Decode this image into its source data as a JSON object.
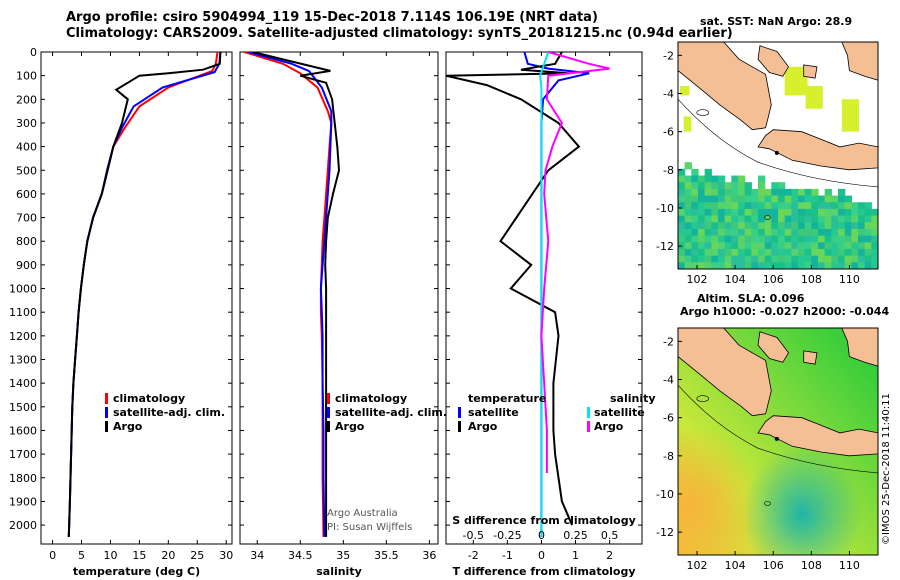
{
  "header": {
    "line1": "Argo profile: csiro 5904994_119 15-Dec-2018 7.114S 106.19E (NRT data)",
    "line2": "Climatology: CARS2009. Satellite-adjusted climatology: synTS_20181215.nc (0.94d earlier)"
  },
  "colors": {
    "climatology": "#ff0000",
    "satellite": "#0000ff",
    "argo": "#000000",
    "sal_satellite": "#00e5ee",
    "sal_argo": "#ff00ff",
    "land": "#f4bf95",
    "sea": "#ffffff"
  },
  "chart_data": [
    {
      "type": "line",
      "name": "temperature",
      "xlabel": "temperature (deg C)",
      "ylabel": "",
      "xlim": [
        -2,
        31
      ],
      "ylim": [
        2080,
        0
      ],
      "xticks": [
        0,
        5,
        10,
        15,
        20,
        25,
        30
      ],
      "yticks": [
        0,
        100,
        200,
        300,
        400,
        500,
        600,
        700,
        800,
        900,
        1000,
        1100,
        1200,
        1300,
        1400,
        1500,
        1600,
        1700,
        1800,
        1900,
        2000
      ],
      "legend": {
        "position": "bottom-center",
        "items": [
          "climatology",
          "satellite-adj. clim.",
          "Argo"
        ]
      },
      "series": [
        {
          "name": "climatology",
          "x": [
            28.5,
            28.2,
            27.6,
            20,
            15,
            12.5,
            10.5,
            9.5,
            8.5,
            7,
            6,
            5.4,
            4.9,
            4.5,
            4.2,
            3.9,
            3.6,
            3.4,
            3.2,
            3,
            2.8
          ],
          "y": [
            0,
            50,
            80,
            150,
            230,
            320,
            400,
            500,
            600,
            700,
            800,
            900,
            1000,
            1100,
            1200,
            1300,
            1400,
            1500,
            1700,
            1900,
            2050
          ]
        },
        {
          "name": "satellite-adj. clim.",
          "x": [
            29,
            28.8,
            28,
            19,
            14,
            12,
            10.5,
            9.4,
            8.5,
            7,
            6,
            5.4,
            4.9,
            4.5,
            4.2,
            3.9,
            3.6,
            3.4,
            3.2,
            3,
            2.8
          ],
          "y": [
            0,
            50,
            85,
            150,
            230,
            320,
            400,
            500,
            600,
            700,
            800,
            900,
            1000,
            1100,
            1200,
            1300,
            1400,
            1500,
            1700,
            1900,
            2050
          ]
        },
        {
          "name": "Argo",
          "x": [
            29,
            28.9,
            26,
            20,
            15,
            11,
            13,
            12,
            10.5,
            9.5,
            8.5,
            7,
            6,
            5.4,
            4.9,
            4.5,
            4.2,
            3.9,
            3.6,
            3.4,
            3.2,
            3,
            2.8
          ],
          "y": [
            0,
            50,
            75,
            90,
            100,
            160,
            200,
            300,
            400,
            500,
            600,
            700,
            800,
            900,
            1000,
            1100,
            1200,
            1300,
            1400,
            1500,
            1700,
            1900,
            2050
          ]
        }
      ]
    },
    {
      "type": "line",
      "name": "salinity",
      "xlabel": "salinity",
      "ylabel": "",
      "xlim": [
        33.8,
        36.1
      ],
      "ylim": [
        2080,
        0
      ],
      "xticks": [
        34,
        34.5,
        35,
        35.5,
        36
      ],
      "legend": {
        "position": "bottom-center",
        "items": [
          "climatology",
          "satellite-adj. clim.",
          "Argo"
        ]
      },
      "annotations": [
        "Argo Australia",
        "PI: Susan Wijffels"
      ],
      "series": [
        {
          "name": "climatology",
          "x": [
            33.85,
            34.3,
            34.5,
            34.7,
            34.82,
            34.86,
            34.84,
            34.82,
            34.8,
            34.78,
            34.76,
            34.75,
            34.74,
            34.74,
            34.75,
            34.76,
            34.76,
            34.76,
            34.77
          ],
          "y": [
            0,
            50,
            90,
            150,
            250,
            300,
            400,
            500,
            600,
            700,
            800,
            900,
            1000,
            1100,
            1200,
            1400,
            1600,
            1800,
            2050
          ]
        },
        {
          "name": "satellite-adj. clim.",
          "x": [
            33.9,
            34.4,
            34.6,
            34.75,
            34.86,
            34.86,
            34.85,
            34.84,
            34.82,
            34.8,
            34.78,
            34.76,
            34.74,
            34.75,
            34.76,
            34.76,
            34.77,
            34.77,
            34.78
          ],
          "y": [
            0,
            50,
            80,
            150,
            250,
            300,
            400,
            500,
            600,
            700,
            800,
            900,
            1000,
            1100,
            1200,
            1400,
            1600,
            1800,
            2050
          ]
        },
        {
          "name": "Argo",
          "x": [
            33.95,
            34.4,
            34.85,
            34.5,
            34.8,
            34.87,
            34.9,
            34.93,
            34.95,
            34.88,
            34.82,
            34.8,
            34.79,
            34.8,
            34.8,
            34.8,
            34.8,
            34.8,
            34.8
          ],
          "y": [
            0,
            40,
            80,
            100,
            130,
            200,
            300,
            400,
            500,
            600,
            700,
            800,
            900,
            1000,
            1100,
            1300,
            1500,
            1700,
            2050
          ]
        }
      ]
    },
    {
      "type": "line",
      "name": "difference from climatology",
      "xlabel": "T difference from climatology",
      "xlabel_top": "S difference from climatology",
      "xlim": [
        -2.8,
        2.95
      ],
      "ylim": [
        2080,
        0
      ],
      "xticks": [
        -2,
        -1,
        0,
        1,
        2
      ],
      "xticks_s": [
        -0.5,
        -0.25,
        0,
        0.25,
        0.5
      ],
      "legend": {
        "position": "bottom",
        "headers": [
          "temperature",
          "salinity"
        ],
        "items": [
          "satellite",
          "Argo"
        ]
      },
      "series": [
        {
          "name": "T satellite",
          "x": [
            -0.5,
            -0.4,
            0.2,
            1.4,
            0.5,
            0.05,
            0,
            0,
            0,
            0,
            0,
            0,
            0,
            0,
            0
          ],
          "y": [
            0,
            50,
            70,
            90,
            120,
            200,
            300,
            400,
            600,
            800,
            1000,
            1300,
            1600,
            1900,
            2050
          ]
        },
        {
          "name": "T Argo",
          "x": [
            0.6,
            0.4,
            -0.6,
            0.8,
            -2.8,
            -1.6,
            -0.6,
            0.5,
            1.1,
            0.2,
            -1.2,
            -0.3,
            -0.9,
            0.4,
            0.5,
            0.35,
            0.35,
            0.4,
            0.5,
            0.6,
            0.9
          ],
          "y": [
            0,
            50,
            75,
            90,
            100,
            140,
            200,
            300,
            400,
            500,
            800,
            900,
            1000,
            1100,
            1200,
            1400,
            1600,
            1700,
            1800,
            1900,
            2000
          ]
        },
        {
          "name": "S satellite",
          "x": [
            0.05,
            0.02,
            -0.01,
            0,
            0,
            0,
            0,
            0,
            0,
            0
          ],
          "y": [
            0,
            50,
            100,
            150,
            200,
            400,
            700,
            1000,
            1500,
            2050
          ]
        },
        {
          "name": "S Argo",
          "x": [
            0.05,
            0.35,
            0.5,
            0.05,
            0.04,
            0.15,
            0.08,
            0.03,
            0.02,
            0.05,
            0.02,
            0,
            0.02,
            0.04,
            0.04
          ],
          "y": [
            0,
            50,
            70,
            100,
            200,
            300,
            400,
            500,
            600,
            800,
            1000,
            1200,
            1400,
            1600,
            1780
          ]
        }
      ]
    },
    {
      "type": "heatmap",
      "name": "satellite SST map",
      "title": "sat. SST: NaN Argo: 28.9",
      "xlim": [
        101,
        111.5
      ],
      "ylim": [
        -13.2,
        -1.3
      ],
      "xticks": [
        102,
        104,
        106,
        108,
        110
      ],
      "yticks": [
        -2,
        -4,
        -6,
        -8,
        -10,
        -12
      ]
    },
    {
      "type": "heatmap",
      "name": "altimetry SLA map",
      "title": "Altim. SLA: 0.096",
      "subtitle": "Argo h1000: -0.027 h2000: -0.044",
      "xlim": [
        101,
        111.5
      ],
      "ylim": [
        -13.2,
        -1.3
      ],
      "xticks": [
        102,
        104,
        106,
        108,
        110
      ],
      "yticks": [
        -2,
        -4,
        -6,
        -8,
        -10,
        -12
      ]
    }
  ],
  "credit": "©IMOS 25-Dec-2018 11:40:11"
}
